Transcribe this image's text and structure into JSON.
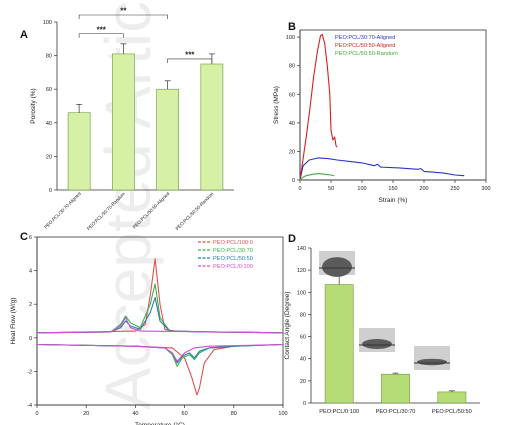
{
  "figure": {
    "watermark": "Accepted Article"
  },
  "chart_data": [
    {
      "panel": "A",
      "type": "bar",
      "ylabel": "Porosity (%)",
      "ylim": [
        0,
        100
      ],
      "yticks": [
        0,
        20,
        40,
        60,
        80,
        100
      ],
      "categories": [
        "PEO:PCL/30:70-Aligned",
        "PEO:PCL/30:70-Random",
        "PEO:PCL/50:50-Aligned",
        "PEO:PCL/50:50-Random"
      ],
      "values": [
        46,
        81,
        60,
        75
      ],
      "errors": [
        5,
        6,
        5,
        6
      ],
      "bar_color": "#d6f0a6",
      "significance": [
        {
          "label": "***",
          "from": 0,
          "to": 1
        },
        {
          "label": "**",
          "from": 0,
          "to": 2
        },
        {
          "label": "***",
          "from": 2,
          "to": 3
        }
      ]
    },
    {
      "panel": "B",
      "type": "line",
      "xlabel": "Strain (%)",
      "ylabel": "Stress (MPa)",
      "xlim": [
        0,
        300
      ],
      "ylim": [
        0,
        105
      ],
      "xticks": [
        0,
        50,
        100,
        150,
        200,
        250,
        300
      ],
      "yticks": [
        0,
        20,
        40,
        60,
        80,
        100
      ],
      "legend": "top-right",
      "series": [
        {
          "name": "PEO:PCL/30:70-Aligned",
          "color": "#2a35c8",
          "x": [
            0,
            5,
            15,
            30,
            45,
            60,
            80,
            100,
            120,
            125,
            130,
            160,
            190,
            195,
            200,
            230,
            250,
            265
          ],
          "y": [
            0,
            10,
            14,
            15.5,
            15,
            14,
            13,
            12,
            10,
            11,
            9,
            8.5,
            7.5,
            8,
            6,
            5,
            3.5,
            3
          ]
        },
        {
          "name": "PEO:PCL/50:50-Aligned",
          "color": "#d62020",
          "x": [
            0,
            4,
            10,
            16,
            22,
            28,
            33,
            36,
            40,
            44,
            48,
            50,
            53,
            56,
            58,
            60
          ],
          "y": [
            0,
            12,
            30,
            50,
            72,
            90,
            101,
            102,
            95,
            80,
            60,
            35,
            28,
            30,
            24,
            23
          ]
        },
        {
          "name": "PEO:PCL/50:50-Random",
          "color": "#3faa3f",
          "x": [
            0,
            5,
            10,
            20,
            30,
            40,
            50,
            55
          ],
          "y": [
            0,
            2,
            3,
            4,
            4.5,
            4,
            3.5,
            3
          ]
        }
      ]
    },
    {
      "panel": "C",
      "type": "line",
      "xlabel": "Temperature (°C)",
      "ylabel": "Heat Flow (W/g)",
      "xlim": [
        0,
        100
      ],
      "ylim": [
        -4,
        6
      ],
      "xticks": [
        0,
        20,
        40,
        60,
        80,
        100
      ],
      "yticks": [
        -4,
        -2,
        0,
        2,
        4,
        6
      ],
      "legend": "top-right",
      "series": [
        {
          "name": "PEO:PCL/100:0",
          "color": "#e05050",
          "x": [
            0,
            20,
            40,
            44,
            46,
            48,
            50,
            52,
            56,
            70,
            100
          ],
          "y": [
            0.3,
            0.35,
            0.4,
            0.8,
            2.5,
            4.7,
            2.0,
            0.5,
            0.4,
            0.35,
            0.3
          ]
        },
        {
          "name": "PEO:PCL/30:70",
          "color": "#3cb04a",
          "x": [
            0,
            30,
            34,
            36,
            38,
            42,
            46,
            48,
            50,
            54,
            70,
            100
          ],
          "y": [
            0.3,
            0.35,
            0.8,
            1.3,
            0.9,
            0.6,
            2.0,
            3.2,
            1.2,
            0.4,
            0.35,
            0.3
          ]
        },
        {
          "name": "PEO:PCL/50:50",
          "color": "#2a7fb0",
          "x": [
            0,
            30,
            34,
            36,
            38,
            42,
            46,
            48,
            50,
            54,
            70,
            100
          ],
          "y": [
            0.3,
            0.35,
            0.6,
            1.0,
            0.7,
            0.5,
            1.5,
            2.4,
            1.0,
            0.4,
            0.35,
            0.3
          ]
        },
        {
          "name": "PEO:PCL/0:100",
          "color": "#d050d0",
          "x": [
            0,
            30,
            34,
            36,
            38,
            42,
            100
          ],
          "y": [
            0.3,
            0.35,
            0.7,
            1.2,
            0.6,
            0.4,
            0.3
          ]
        },
        {
          "name": "",
          "color": "#e05050",
          "x": [
            0,
            40,
            55,
            60,
            63,
            65,
            66,
            68,
            72,
            80,
            100
          ],
          "y": [
            -0.4,
            -0.5,
            -0.6,
            -1.2,
            -2.4,
            -3.4,
            -3.0,
            -1.5,
            -0.7,
            -0.5,
            -0.4
          ]
        },
        {
          "name": "",
          "color": "#3cb04a",
          "x": [
            0,
            40,
            52,
            55,
            57,
            59,
            62,
            64,
            66,
            70,
            80,
            100
          ],
          "y": [
            -0.4,
            -0.5,
            -0.6,
            -1.0,
            -1.7,
            -1.2,
            -1.0,
            -1.3,
            -0.9,
            -0.6,
            -0.5,
            -0.4
          ]
        },
        {
          "name": "",
          "color": "#2a7fb0",
          "x": [
            0,
            40,
            52,
            55,
            57,
            59,
            62,
            64,
            66,
            70,
            80,
            100
          ],
          "y": [
            -0.4,
            -0.5,
            -0.6,
            -0.9,
            -1.5,
            -1.1,
            -0.9,
            -1.2,
            -0.8,
            -0.6,
            -0.5,
            -0.4
          ]
        },
        {
          "name": "",
          "color": "#d050d0",
          "x": [
            0,
            40,
            52,
            55,
            57,
            60,
            64,
            70,
            100
          ],
          "y": [
            -0.4,
            -0.5,
            -0.6,
            -0.9,
            -1.4,
            -0.9,
            -0.6,
            -0.5,
            -0.4
          ]
        }
      ]
    },
    {
      "panel": "D",
      "type": "bar",
      "ylabel": "Contact Angle (Degree)",
      "ylim": [
        0,
        140
      ],
      "yticks": [
        0,
        20,
        40,
        60,
        80,
        100,
        120,
        140
      ],
      "categories": [
        "PEO:PCL/0:100",
        "PEO:PCL/30:70",
        "PEO:PCL/50:50"
      ],
      "values": [
        107,
        26,
        10
      ],
      "errors": [
        9,
        1,
        1
      ],
      "bar_color": "#b6dc78"
    }
  ]
}
